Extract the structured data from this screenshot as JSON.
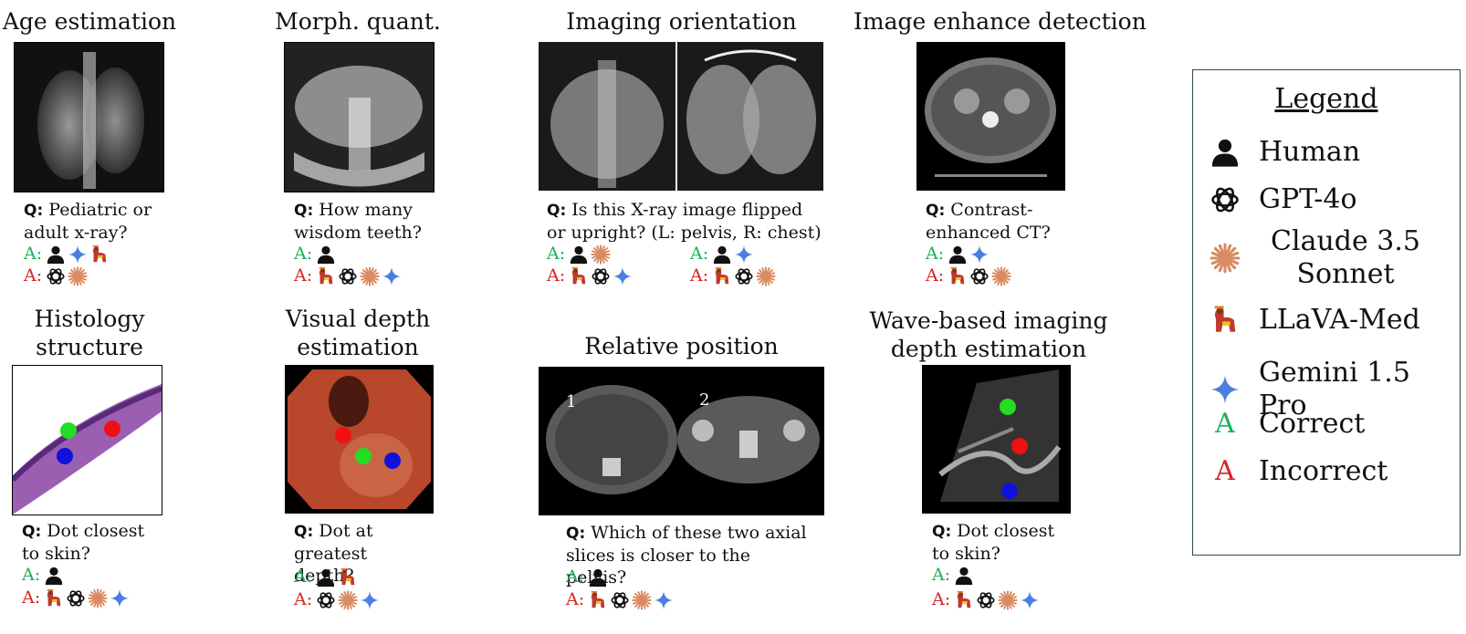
{
  "panels": [
    {
      "title": "Age estimation",
      "q": "Pediatric or adult x-ray?",
      "correct": [
        "human",
        "gemini",
        "llava"
      ],
      "incorrect": [
        "gpt",
        "claude"
      ]
    },
    {
      "title": "Morph. quant.",
      "q": "How many wisdom teeth?",
      "correct": [
        "human"
      ],
      "incorrect": [
        "llava",
        "gpt",
        "claude",
        "gemini"
      ]
    },
    {
      "title": "Imaging orientation",
      "q": "Is this X-ray image flipped or upright? (L: pelvis, R: chest)",
      "correct_left": [
        "human",
        "claude"
      ],
      "incorrect_left": [
        "llava",
        "gpt",
        "gemini"
      ],
      "correct_right": [
        "human",
        "gemini"
      ],
      "incorrect_right": [
        "llava",
        "gpt",
        "claude"
      ]
    },
    {
      "title": "Image enhance detection",
      "q": "Contrast-enhanced CT?",
      "correct": [
        "human",
        "gemini"
      ],
      "incorrect": [
        "llava",
        "gpt",
        "claude"
      ]
    },
    {
      "title": "Histology structure",
      "q": "Dot closest to skin?",
      "correct": [
        "human"
      ],
      "incorrect": [
        "llava",
        "gpt",
        "claude",
        "gemini"
      ]
    },
    {
      "title": "Visual depth estimation",
      "q": "Dot at greatest depth?",
      "correct": [
        "human",
        "llava"
      ],
      "incorrect": [
        "gpt",
        "claude",
        "gemini"
      ]
    },
    {
      "title": "Relative position",
      "q": "Which of these two axial slices is closer to the pelvis?",
      "slice_labels": [
        "1",
        "2"
      ],
      "correct": [
        "human"
      ],
      "incorrect": [
        "llava",
        "gpt",
        "claude",
        "gemini"
      ]
    },
    {
      "title": "Wave-based imaging depth estimation",
      "q": "Dot closest to skin?",
      "correct": [
        "human"
      ],
      "incorrect": [
        "llava",
        "gpt",
        "claude",
        "gemini"
      ]
    }
  ],
  "labels": {
    "q": "Q:",
    "a": "A:"
  },
  "legend": {
    "title": "Legend",
    "items": [
      {
        "icon": "human",
        "label": "Human"
      },
      {
        "icon": "gpt",
        "label": "GPT-4o"
      },
      {
        "icon": "claude",
        "label": "Claude 3.5 Sonnet"
      },
      {
        "icon": "llava",
        "label": "LLaVA-Med"
      },
      {
        "icon": "gemini",
        "label": "Gemini 1.5 Pro"
      },
      {
        "letter": "A",
        "label": "Correct"
      },
      {
        "letter": "A",
        "label": "Incorrect"
      }
    ]
  },
  "colors": {
    "correct": "#1fb15a",
    "incorrect": "#d42626",
    "gemini": "#4a7fe0",
    "claude": "#d98b62"
  }
}
